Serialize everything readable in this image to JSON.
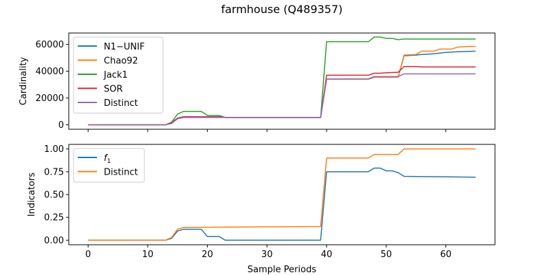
{
  "title": "farmhouse (Q489357)",
  "colors": {
    "blue": "#1f77b4",
    "orange": "#ff7f0e",
    "green": "#2ca02c",
    "red": "#d62728",
    "purple": "#9467bd"
  },
  "chart_data": [
    {
      "type": "line",
      "ylabel": "Cardinality",
      "xlim": [
        -3.25,
        68.25
      ],
      "ylim": [
        -3300,
        68500
      ],
      "yticks": [
        0,
        20000,
        40000,
        60000
      ],
      "ytick_labels": [
        "0",
        "20000",
        "40000",
        "60000"
      ],
      "legend_position": "top-left",
      "series": [
        {
          "name": "N1−UNIF",
          "color": "#1f77b4",
          "points": [
            [
              0,
              0
            ],
            [
              13,
              0
            ],
            [
              14,
              1500
            ],
            [
              15,
              5000
            ],
            [
              16,
              6000
            ],
            [
              22,
              6000
            ],
            [
              23,
              5500
            ],
            [
              39,
              5500
            ],
            [
              40,
              34000
            ],
            [
              47,
              34000
            ],
            [
              48,
              35500
            ],
            [
              52,
              35500
            ],
            [
              53,
              51500
            ],
            [
              55,
              52000
            ],
            [
              56,
              52500
            ],
            [
              58,
              53000
            ],
            [
              60,
              54000
            ],
            [
              62,
              54500
            ],
            [
              65,
              55000
            ]
          ]
        },
        {
          "name": "Chao92",
          "color": "#ff7f0e",
          "points": [
            [
              0,
              0
            ],
            [
              13,
              0
            ],
            [
              14,
              1500
            ],
            [
              15,
              5000
            ],
            [
              16,
              6000
            ],
            [
              22,
              6000
            ],
            [
              23,
              5500
            ],
            [
              39,
              5500
            ],
            [
              40,
              34000
            ],
            [
              47,
              34000
            ],
            [
              48,
              35500
            ],
            [
              52,
              35500
            ],
            [
              53,
              52000
            ],
            [
              55,
              52500
            ],
            [
              56,
              55000
            ],
            [
              58,
              55000
            ],
            [
              59,
              56500
            ],
            [
              61,
              56500
            ],
            [
              62,
              58000
            ],
            [
              64,
              58500
            ],
            [
              65,
              58500
            ]
          ]
        },
        {
          "name": "Jack1",
          "color": "#2ca02c",
          "points": [
            [
              0,
              0
            ],
            [
              13,
              0
            ],
            [
              14,
              2000
            ],
            [
              15,
              8000
            ],
            [
              16,
              10000
            ],
            [
              19,
              10000
            ],
            [
              20,
              7000
            ],
            [
              22,
              7000
            ],
            [
              23,
              5500
            ],
            [
              39,
              5500
            ],
            [
              40,
              62000
            ],
            [
              47,
              62000
            ],
            [
              48,
              65500
            ],
            [
              49,
              65500
            ],
            [
              50,
              64500
            ],
            [
              51,
              64500
            ],
            [
              52,
              63500
            ],
            [
              53,
              64000
            ],
            [
              65,
              64000
            ]
          ]
        },
        {
          "name": "SOR",
          "color": "#d62728",
          "points": [
            [
              0,
              0
            ],
            [
              13,
              0
            ],
            [
              14,
              1500
            ],
            [
              15,
              5000
            ],
            [
              16,
              6000
            ],
            [
              22,
              6000
            ],
            [
              23,
              5500
            ],
            [
              39,
              5500
            ],
            [
              40,
              37000
            ],
            [
              47,
              37000
            ],
            [
              48,
              38500
            ],
            [
              49,
              38500
            ],
            [
              50,
              38800
            ],
            [
              52,
              39200
            ],
            [
              53,
              43500
            ],
            [
              55,
              43500
            ],
            [
              56,
              43200
            ],
            [
              65,
              43200
            ]
          ]
        },
        {
          "name": "Distinct",
          "color": "#9467bd",
          "points": [
            [
              0,
              0
            ],
            [
              13,
              0
            ],
            [
              14,
              1000
            ],
            [
              15,
              4500
            ],
            [
              16,
              5500
            ],
            [
              22,
              5500
            ],
            [
              23,
              5500
            ],
            [
              39,
              5500
            ],
            [
              40,
              34200
            ],
            [
              47,
              34300
            ],
            [
              48,
              36000
            ],
            [
              52,
              36000
            ],
            [
              53,
              38000
            ],
            [
              65,
              38000
            ]
          ]
        }
      ]
    },
    {
      "type": "line",
      "xlabel": "Sample Periods",
      "ylabel": "Indicators",
      "xlim": [
        -3.25,
        68.25
      ],
      "ylim": [
        -0.05,
        1.05
      ],
      "xticks": [
        0,
        10,
        20,
        30,
        40,
        50,
        60
      ],
      "xtick_labels": [
        "0",
        "10",
        "20",
        "30",
        "40",
        "50",
        "60"
      ],
      "yticks": [
        0.0,
        0.25,
        0.5,
        0.75,
        1.0
      ],
      "ytick_labels": [
        "0.00",
        "0.25",
        "0.50",
        "0.75",
        "1.00"
      ],
      "legend_position": "top-left",
      "series": [
        {
          "name_main": "f",
          "name_sub": "1",
          "color": "#1f77b4",
          "points": [
            [
              0,
              0
            ],
            [
              13,
              0
            ],
            [
              14,
              0.02
            ],
            [
              15,
              0.1
            ],
            [
              16,
              0.12
            ],
            [
              19,
              0.12
            ],
            [
              20,
              0.04
            ],
            [
              22,
              0.04
            ],
            [
              23,
              0.0
            ],
            [
              39,
              0.0
            ],
            [
              40,
              0.75
            ],
            [
              47,
              0.75
            ],
            [
              48,
              0.79
            ],
            [
              49,
              0.79
            ],
            [
              50,
              0.76
            ],
            [
              51,
              0.76
            ],
            [
              52,
              0.74
            ],
            [
              53,
              0.7
            ],
            [
              65,
              0.69
            ]
          ]
        },
        {
          "name": "Distinct",
          "color": "#ff7f0e",
          "points": [
            [
              0,
              0
            ],
            [
              13,
              0
            ],
            [
              14,
              0.03
            ],
            [
              15,
              0.12
            ],
            [
              16,
              0.14
            ],
            [
              39,
              0.15
            ],
            [
              40,
              0.9
            ],
            [
              47,
              0.9
            ],
            [
              48,
              0.94
            ],
            [
              52,
              0.94
            ],
            [
              53,
              1.0
            ],
            [
              65,
              1.0
            ]
          ]
        }
      ]
    }
  ]
}
